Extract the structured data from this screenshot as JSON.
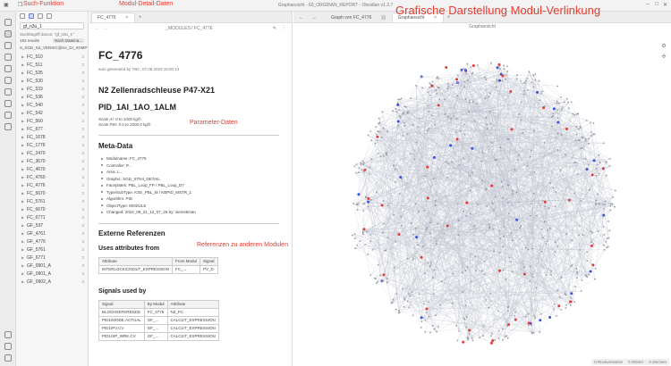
{
  "window": {
    "title": "Graphansicht - 60_ORGDIAN_REPORT - Obsidian v1.3.7"
  },
  "annotations": {
    "search": "Such-Funktion",
    "module_detail": "Modul-Detail-Daten",
    "graph": "Grafische Darstellung Modul-Verlinkung",
    "parameters": "Parameter-Daten",
    "references": "Referenzen zu anderen Modulen"
  },
  "sidebar": {
    "search_value": "gf_n3u_1",
    "hint": "Suchbegriff davon: \"gf_n3u_1\"",
    "results_count": "192 results",
    "sort_label": "Nach Dateina...",
    "result_header": "S_SGD_N2_VERSIC@Ke_DI_XDMP",
    "results": [
      {
        "name": "FC_510",
        "count": "3"
      },
      {
        "name": "FC_511",
        "count": "3"
      },
      {
        "name": "FC_535",
        "count": "3"
      },
      {
        "name": "FC_530",
        "count": "3"
      },
      {
        "name": "FC_533",
        "count": "3"
      },
      {
        "name": "FC_536",
        "count": "3"
      },
      {
        "name": "FC_540",
        "count": "3"
      },
      {
        "name": "FC_542",
        "count": "3"
      },
      {
        "name": "FC_560",
        "count": "3"
      },
      {
        "name": "FC_677",
        "count": "3"
      },
      {
        "name": "FC_1678",
        "count": "3"
      },
      {
        "name": "FC_1776",
        "count": "3"
      },
      {
        "name": "FC_2470",
        "count": "3"
      },
      {
        "name": "FC_3670",
        "count": "3"
      },
      {
        "name": "FC_4670",
        "count": "3"
      },
      {
        "name": "FC_4760",
        "count": "3"
      },
      {
        "name": "FC_4776",
        "count": "3"
      },
      {
        "name": "FC_5670",
        "count": "3"
      },
      {
        "name": "FC_5761",
        "count": "3"
      },
      {
        "name": "FC_6670",
        "count": "3"
      },
      {
        "name": "FC_6771",
        "count": "3"
      },
      {
        "name": "GF_537",
        "count": "3"
      },
      {
        "name": "GF_4761",
        "count": "3"
      },
      {
        "name": "GF_4776",
        "count": "3"
      },
      {
        "name": "GF_5761",
        "count": "3"
      },
      {
        "name": "GF_6771",
        "count": "3"
      },
      {
        "name": "GF_0901_A",
        "count": "3"
      },
      {
        "name": "GF_0901_A",
        "count": "3"
      },
      {
        "name": "GF_0902_A",
        "count": "3"
      }
    ]
  },
  "left_pane": {
    "tab_label": "FC_4776",
    "breadcrumb": "_MODULES / FC_4776",
    "note": {
      "title": "FC_4776",
      "generated": "auto generated by TBC, 07.08.2023 15:00:13",
      "heading": "N2 Zellenradschleuse P47-X21",
      "pid": "PID_1AI_1AO_1ALM",
      "scale_ai": "Scale AI: 0 to 1000 kg/h",
      "scale_pid": "Scale PID: 0.0 to 2000.0 kg/h",
      "meta_heading": "Meta-Data",
      "meta": [
        "Modulname: FC_4776",
        "Controller: P...",
        "Area: L...",
        "Graphic: SGD_STN4_DETAIL",
        "Faceplates: PBL_Loop_FP / PBL_Loop_D7",
        "Type/SubType: KSE_PBL_M / KBPID_MSTR_1",
        "Algorithm: PID",
        "ObjectType: MODULE",
        "Changed: 2022_09_21_12_07_26 by: siemsbman"
      ],
      "ext_heading": "Externe Referenzen",
      "uses_heading": "Uses attributes from",
      "uses_table": {
        "headers": [
          "Attribute",
          "From Modul",
          "Signal"
        ],
        "rows": [
          [
            "INTERLOCK/CND1/T_EXPRESSION",
            "FC_...",
            "PV_D"
          ]
        ]
      },
      "signals_heading": "Signals used by",
      "signals_table": {
        "headers": [
          "Signal",
          "By Modul",
          "Attribute"
        ],
        "rows": [
          [
            "BLOCKREFERENCE",
            "FC_4776",
            "N2_FC"
          ],
          [
            "PID1/MODE.ACTUAL",
            "GF_...",
            "CALC1/T_EXPRESSION"
          ],
          [
            "PID1/PV.CV",
            "GF_...",
            "CALC1/T_EXPRESSION"
          ],
          [
            "PID1/SP_WRK.CV",
            "GF_...",
            "CALC1/T_EXPRESSION"
          ]
        ]
      }
    }
  },
  "right_pane": {
    "tabs": [
      "Graph von FC_4776",
      "Graphansicht"
    ],
    "graph_title": "Graphansicht",
    "status": [
      "0 Rückverweise",
      "0 Wörter",
      "0 Zeichen"
    ]
  },
  "colors": {
    "annotation": "#e53b2e",
    "node_default": "#9a9aa6",
    "node_red": "#e53b3b",
    "node_blue": "#3b52e0",
    "edge": "#b9bccb"
  }
}
